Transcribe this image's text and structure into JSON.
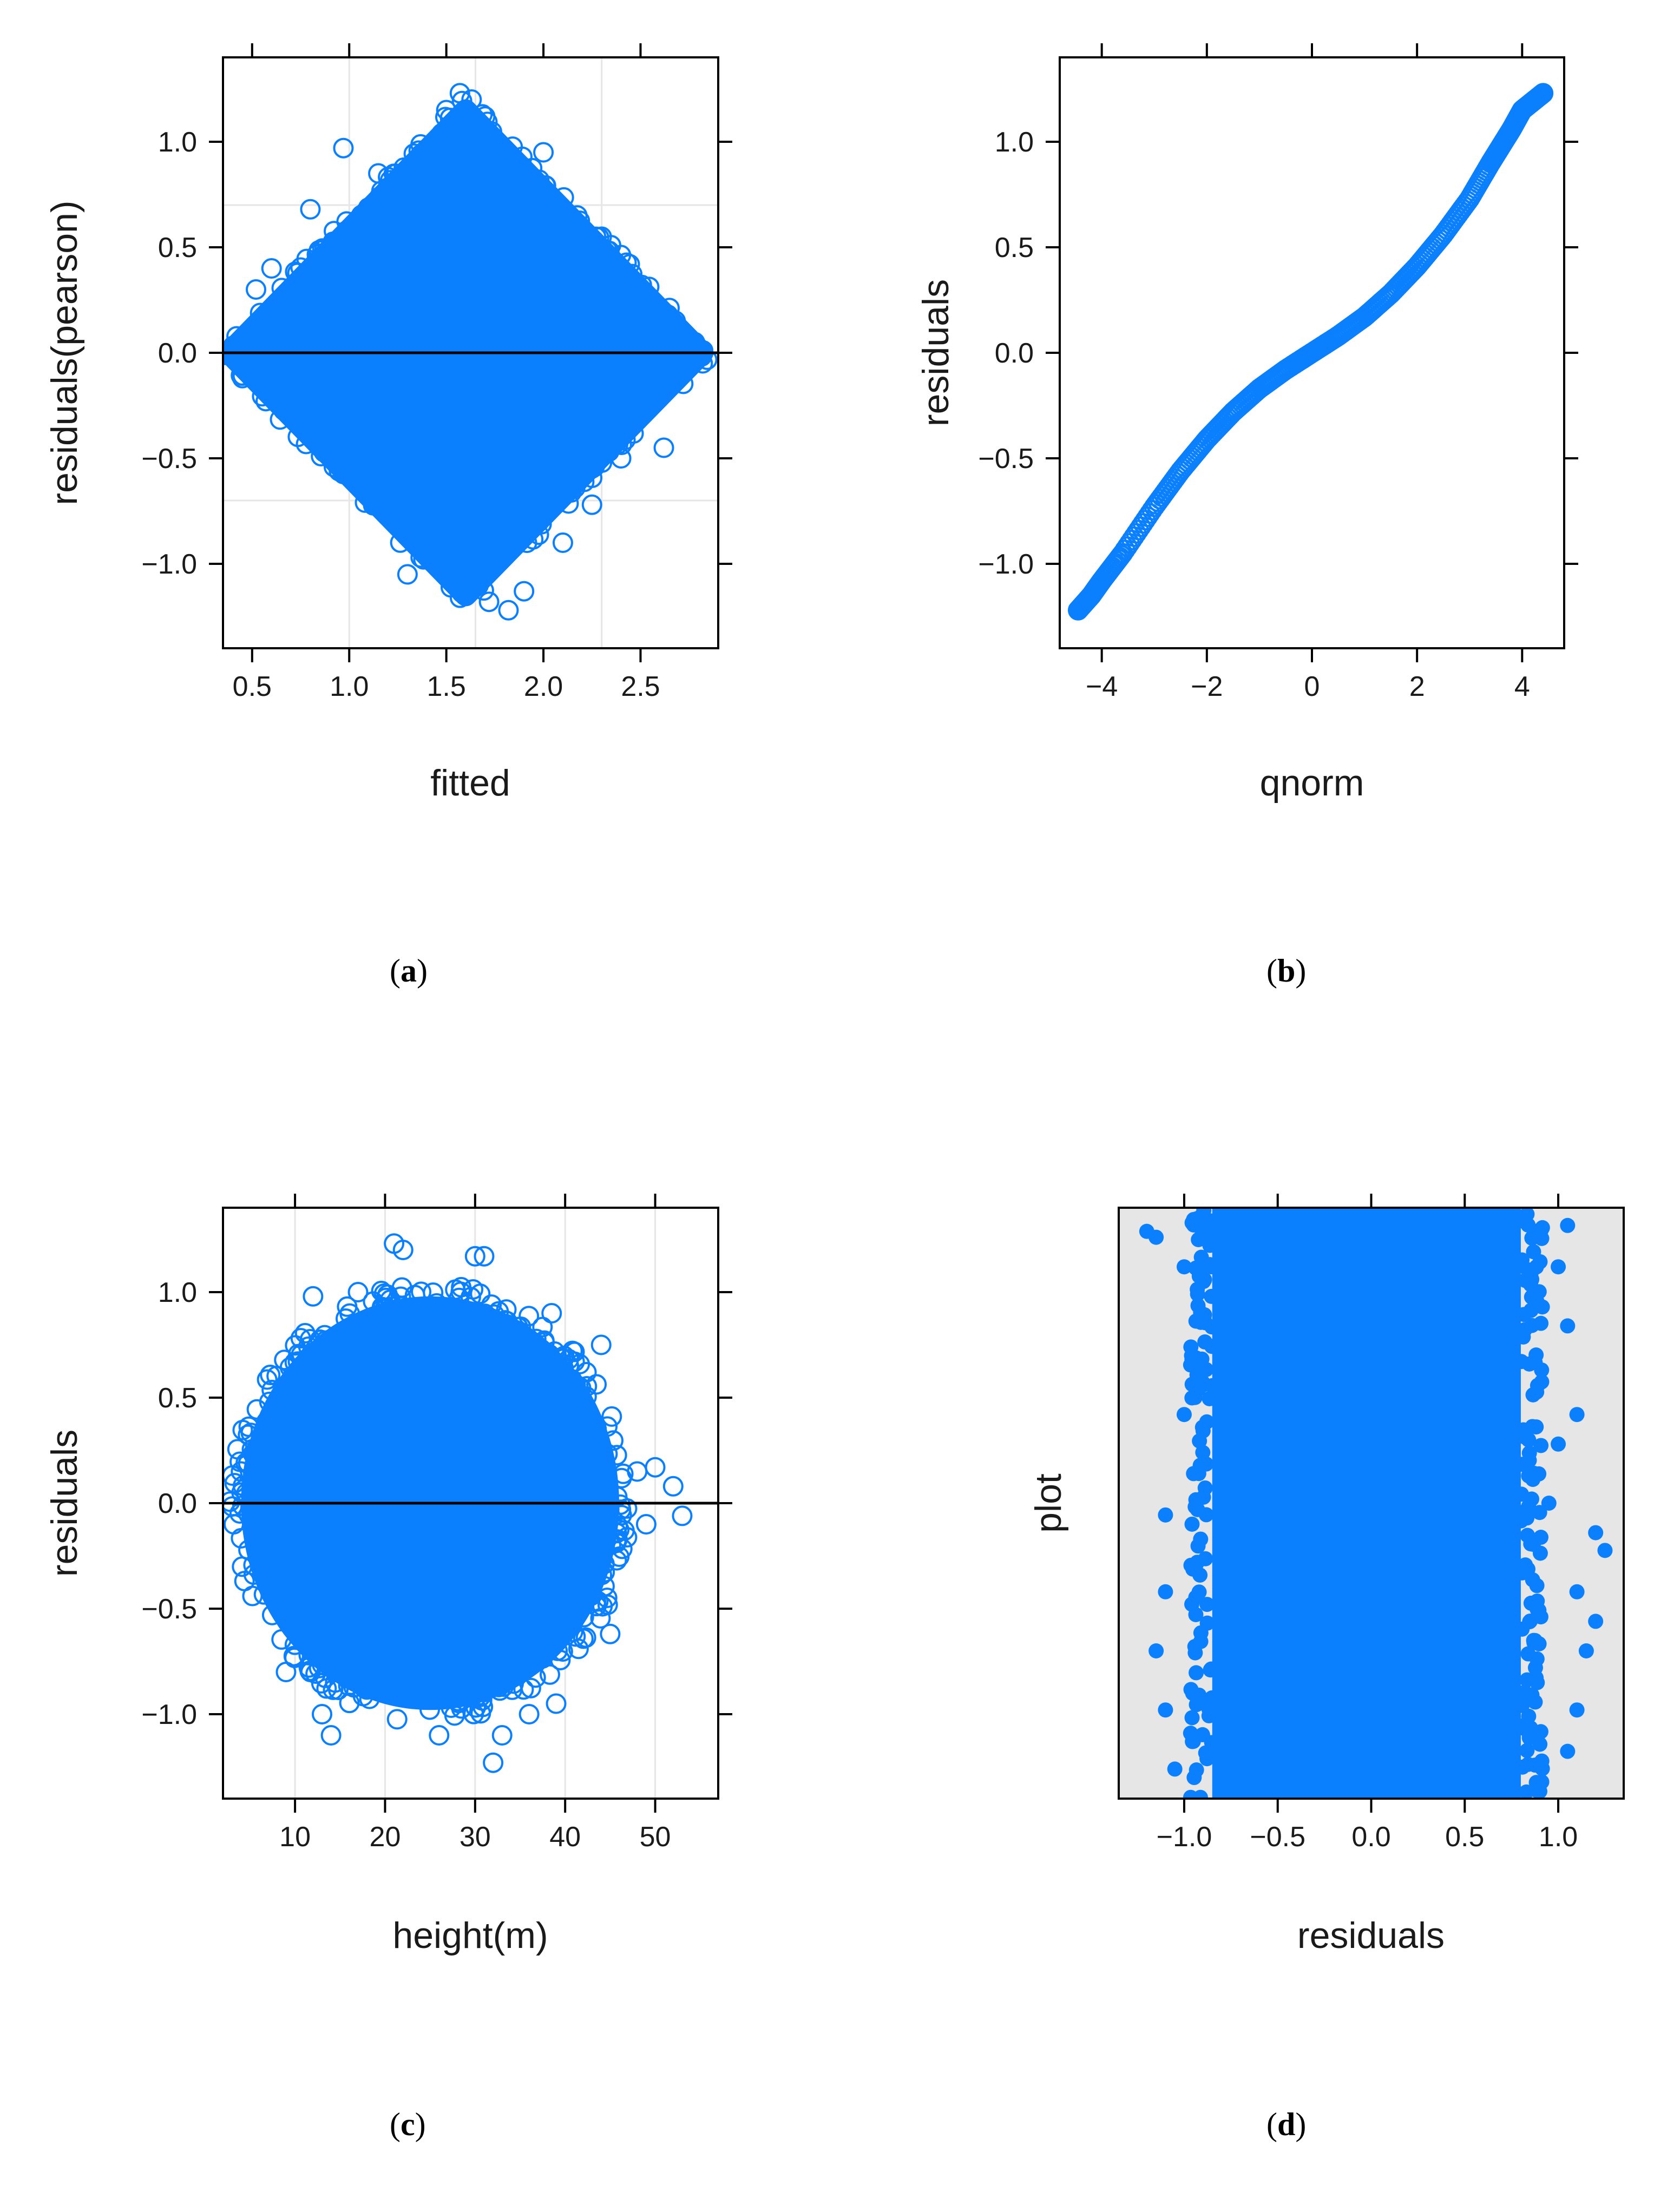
{
  "colors": {
    "point": "#0a80ff",
    "frame": "#000000",
    "grid": "#e6e6e6",
    "panel_bg_d": "#e6e6e6",
    "refline": "#000000"
  },
  "captions": {
    "a": {
      "open": "(",
      "letter": "a",
      "close": ")"
    },
    "b": {
      "open": "(",
      "letter": "b",
      "close": ")"
    },
    "c": {
      "open": "(",
      "letter": "c",
      "close": ")"
    },
    "d": {
      "open": "(",
      "letter": "d",
      "close": ")"
    }
  },
  "chart_data": [
    {
      "id": "a",
      "type": "scatter",
      "marker": "open-circle",
      "title": "",
      "xlabel": "fitted",
      "ylabel": "residuals(pearson)",
      "xlim": [
        0.35,
        2.9
      ],
      "ylim": [
        -1.4,
        1.4
      ],
      "xticks": [
        0.5,
        1.0,
        1.5,
        2.0,
        2.5
      ],
      "xtick_labels": [
        "0.5",
        "1.0",
        "1.5",
        "2.0",
        "2.5"
      ],
      "yticks": [
        -1.0,
        -0.5,
        0.0,
        0.5,
        1.0
      ],
      "ytick_labels": [
        "−1.0",
        "−0.5",
        "0.0",
        "0.5",
        "1.0"
      ],
      "grid": true,
      "vgrid": [
        1.0,
        1.65,
        2.3
      ],
      "hgrid": [
        -0.7,
        0.7
      ],
      "hline": 0,
      "cloud": {
        "shape": "diamond",
        "center_x": 1.6,
        "center_y": 0.0,
        "half_width_x": 1.22,
        "half_height_y": 1.15,
        "fill": "solid"
      },
      "outliers": [
        [
          1.57,
          1.23
        ],
        [
          1.63,
          1.2
        ],
        [
          1.5,
          1.15
        ],
        [
          1.7,
          1.12
        ],
        [
          0.97,
          0.97
        ],
        [
          0.8,
          0.68
        ],
        [
          1.82,
          -1.22
        ],
        [
          1.9,
          -1.13
        ],
        [
          1.72,
          -1.18
        ],
        [
          2.4,
          -0.5
        ],
        [
          2.62,
          -0.45
        ],
        [
          2.78,
          0.05
        ],
        [
          2.82,
          -0.05
        ],
        [
          0.45,
          -0.12
        ],
        [
          0.52,
          0.3
        ],
        [
          2.0,
          0.95
        ],
        [
          1.15,
          0.85
        ],
        [
          2.3,
          0.55
        ],
        [
          0.6,
          0.4
        ],
        [
          2.1,
          -0.9
        ],
        [
          1.3,
          -1.05
        ],
        [
          2.25,
          -0.72
        ]
      ]
    },
    {
      "id": "b",
      "type": "scatter",
      "marker": "open-circle",
      "title": "",
      "xlabel": "qnorm",
      "ylabel": "residuals",
      "xlim": [
        -4.8,
        4.8
      ],
      "ylim": [
        -1.4,
        1.4
      ],
      "xticks": [
        -4,
        -2,
        0,
        2,
        4
      ],
      "xtick_labels": [
        "−4",
        "−2",
        "0",
        "2",
        "4"
      ],
      "yticks": [
        -1.0,
        -0.5,
        0.0,
        0.5,
        1.0
      ],
      "ytick_labels": [
        "−1.0",
        "−0.5",
        "0.0",
        "0.5",
        "1.0"
      ],
      "grid": false,
      "curve": [
        [
          -4.45,
          -1.22
        ],
        [
          -4.2,
          -1.15
        ],
        [
          -4.0,
          -1.08
        ],
        [
          -3.6,
          -0.95
        ],
        [
          -3.0,
          -0.73
        ],
        [
          -2.5,
          -0.56
        ],
        [
          -2.0,
          -0.41
        ],
        [
          -1.5,
          -0.28
        ],
        [
          -1.0,
          -0.17
        ],
        [
          -0.5,
          -0.08
        ],
        [
          0.0,
          0.0
        ],
        [
          0.5,
          0.08
        ],
        [
          1.0,
          0.17
        ],
        [
          1.5,
          0.28
        ],
        [
          2.0,
          0.41
        ],
        [
          2.5,
          0.56
        ],
        [
          3.0,
          0.73
        ],
        [
          3.4,
          0.9
        ],
        [
          3.6,
          0.98
        ],
        [
          3.8,
          1.06
        ],
        [
          4.0,
          1.15
        ],
        [
          4.2,
          1.19
        ],
        [
          4.4,
          1.23
        ]
      ]
    },
    {
      "id": "c",
      "type": "scatter",
      "marker": "open-circle",
      "title": "",
      "xlabel": "height(m)",
      "ylabel": "residuals",
      "xlim": [
        2,
        57
      ],
      "ylim": [
        -1.4,
        1.4
      ],
      "xticks": [
        10,
        20,
        30,
        40,
        50
      ],
      "xtick_labels": [
        "10",
        "20",
        "30",
        "40",
        "50"
      ],
      "yticks": [
        -1.0,
        -0.5,
        0.0,
        0.5,
        1.0
      ],
      "ytick_labels": [
        "−1.0",
        "−0.5",
        "0.0",
        "0.5",
        "1.0"
      ],
      "grid": true,
      "vgrid": [
        10,
        20,
        30,
        40,
        50
      ],
      "hgrid": [],
      "hline": 0,
      "cloud": {
        "shape": "ellipse",
        "center_x": 25,
        "center_y": 0.0,
        "half_width_x": 21,
        "half_height_y": 0.98,
        "fill": "solid"
      },
      "outliers": [
        [
          21,
          1.23
        ],
        [
          22,
          1.2
        ],
        [
          30,
          1.17
        ],
        [
          31,
          1.17
        ],
        [
          38.5,
          0.9
        ],
        [
          44,
          0.75
        ],
        [
          48,
          0.15
        ],
        [
          50,
          0.17
        ],
        [
          52,
          0.08
        ],
        [
          53,
          -0.06
        ],
        [
          49,
          -0.1
        ],
        [
          45,
          -0.62
        ],
        [
          39,
          -0.95
        ],
        [
          33,
          -1.1
        ],
        [
          32,
          -1.23
        ],
        [
          26,
          -1.1
        ],
        [
          14,
          -1.1
        ],
        [
          13,
          -1.0
        ],
        [
          3.2,
          -0.1
        ],
        [
          4,
          0.15
        ],
        [
          12,
          0.98
        ],
        [
          17,
          1.0
        ],
        [
          36,
          -1.0
        ],
        [
          9,
          -0.8
        ]
      ]
    },
    {
      "id": "d",
      "type": "scatter",
      "marker": "filled-circle",
      "title": "",
      "xlabel": "residuals",
      "ylabel": "plot",
      "xlim": [
        -1.35,
        1.35
      ],
      "ylim": [
        0,
        1
      ],
      "xticks": [
        -1.0,
        -0.5,
        0.0,
        0.5,
        1.0
      ],
      "xtick_labels": [
        "−1.0",
        "−0.5",
        "0.0",
        "0.5",
        "1.0"
      ],
      "yticks": [],
      "grid": false,
      "band": {
        "x_min": -0.85,
        "x_max": 0.8,
        "fill": "solid"
      },
      "outliers": [
        [
          -1.2,
          0.96
        ],
        [
          -1.15,
          0.95
        ],
        [
          -1.0,
          0.9
        ],
        [
          -0.95,
          0.55
        ],
        [
          -1.1,
          0.48
        ],
        [
          -1.1,
          0.35
        ],
        [
          -1.15,
          0.25
        ],
        [
          -1.1,
          0.15
        ],
        [
          -1.05,
          0.05
        ],
        [
          -0.9,
          0.7
        ],
        [
          -0.93,
          0.4
        ],
        [
          1.05,
          0.97
        ],
        [
          1.0,
          0.9
        ],
        [
          1.05,
          0.8
        ],
        [
          1.1,
          0.65
        ],
        [
          1.2,
          0.45
        ],
        [
          1.25,
          0.42
        ],
        [
          1.1,
          0.35
        ],
        [
          1.15,
          0.25
        ],
        [
          1.1,
          0.15
        ],
        [
          1.05,
          0.08
        ],
        [
          1.0,
          0.6
        ],
        [
          0.95,
          0.5
        ],
        [
          -1.0,
          0.65
        ],
        [
          1.2,
          0.3
        ]
      ]
    }
  ]
}
